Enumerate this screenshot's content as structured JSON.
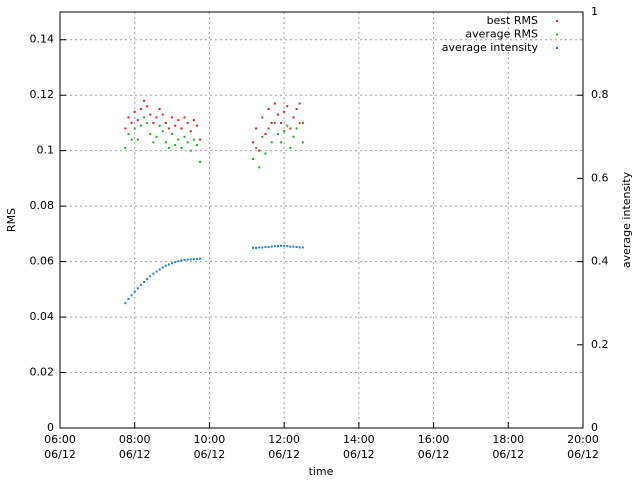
{
  "chart_data": {
    "type": "scatter",
    "x_label": "time",
    "y_label": "RMS",
    "y2_label": "average intensity",
    "xlim": [
      "06/12 06:00",
      "06/12 20:00"
    ],
    "xticks": [
      {
        "value": "06/12 06:00",
        "label": "06:00\n06/12"
      },
      {
        "value": "06/12 08:00",
        "label": "08:00\n06/12"
      },
      {
        "value": "06/12 10:00",
        "label": "10:00\n06/12"
      },
      {
        "value": "06/12 12:00",
        "label": "12:00\n06/12"
      },
      {
        "value": "06/12 14:00",
        "label": "14:00\n06/12"
      },
      {
        "value": "06/12 16:00",
        "label": "16:00\n06/12"
      },
      {
        "value": "06/12 18:00",
        "label": "18:00\n06/12"
      },
      {
        "value": "06/12 20:00",
        "label": "20:00\n06/12"
      }
    ],
    "ylim": [
      0,
      0.15
    ],
    "yticks": [
      0,
      0.02,
      0.04,
      0.06,
      0.08,
      0.1,
      0.12,
      0.14
    ],
    "y2lim": [
      0,
      1
    ],
    "y2ticks": [
      0,
      0.2,
      0.4,
      0.6,
      0.8,
      1
    ],
    "grid": true,
    "legend": "top-right",
    "x": [
      "06/12 07:45",
      "06/12 07:50",
      "06/12 07:55",
      "06/12 08:00",
      "06/12 08:05",
      "06/12 08:10",
      "06/12 08:15",
      "06/12 08:20",
      "06/12 08:25",
      "06/12 08:30",
      "06/12 08:35",
      "06/12 08:40",
      "06/12 08:45",
      "06/12 08:50",
      "06/12 08:55",
      "06/12 09:00",
      "06/12 09:05",
      "06/12 09:10",
      "06/12 09:15",
      "06/12 09:20",
      "06/12 09:25",
      "06/12 09:30",
      "06/12 09:35",
      "06/12 09:40",
      "06/12 09:45",
      "06/12 11:10",
      "06/12 11:15",
      "06/12 11:20",
      "06/12 11:25",
      "06/12 11:30",
      "06/12 11:35",
      "06/12 11:40",
      "06/12 11:45",
      "06/12 11:50",
      "06/12 11:55",
      "06/12 12:00",
      "06/12 12:05",
      "06/12 12:10",
      "06/12 12:15",
      "06/12 12:20",
      "06/12 12:25",
      "06/12 12:30"
    ],
    "series": [
      {
        "name": "best RMS",
        "color": "#e41a1c",
        "axis": "y",
        "values": [
          0.108,
          0.112,
          0.11,
          0.114,
          0.111,
          0.115,
          0.118,
          0.116,
          0.113,
          0.11,
          0.112,
          0.115,
          0.113,
          0.11,
          0.108,
          0.112,
          0.109,
          0.111,
          0.108,
          0.112,
          0.11,
          0.107,
          0.111,
          0.109,
          0.104,
          0.103,
          0.108,
          0.1,
          0.112,
          0.106,
          0.115,
          0.11,
          0.117,
          0.113,
          0.11,
          0.114,
          0.116,
          0.108,
          0.112,
          0.115,
          0.117,
          0.11
        ]
      },
      {
        "name": "average RMS",
        "color": "#1faa1f",
        "axis": "y",
        "values": [
          0.101,
          0.106,
          0.104,
          0.108,
          0.104,
          0.109,
          0.112,
          0.11,
          0.106,
          0.103,
          0.105,
          0.109,
          0.107,
          0.103,
          0.101,
          0.106,
          0.102,
          0.104,
          0.101,
          0.105,
          0.103,
          0.1,
          0.104,
          0.102,
          0.096,
          0.097,
          0.101,
          0.094,
          0.105,
          0.099,
          0.108,
          0.103,
          0.11,
          0.106,
          0.103,
          0.107,
          0.109,
          0.101,
          0.105,
          0.108,
          0.11,
          0.103
        ]
      },
      {
        "name": "average intensity",
        "color": "#1e7fd8",
        "axis": "y2",
        "values": [
          0.3,
          0.31,
          0.319,
          0.328,
          0.336,
          0.344,
          0.351,
          0.358,
          0.365,
          0.371,
          0.376,
          0.381,
          0.386,
          0.39,
          0.393,
          0.396,
          0.399,
          0.401,
          0.403,
          0.404,
          0.405,
          0.405,
          0.406,
          0.406,
          0.407,
          0.433,
          0.433,
          0.434,
          0.434,
          0.435,
          0.435,
          0.436,
          0.437,
          0.437,
          0.438,
          0.438,
          0.437,
          0.436,
          0.436,
          0.435,
          0.434,
          0.434
        ]
      }
    ]
  }
}
